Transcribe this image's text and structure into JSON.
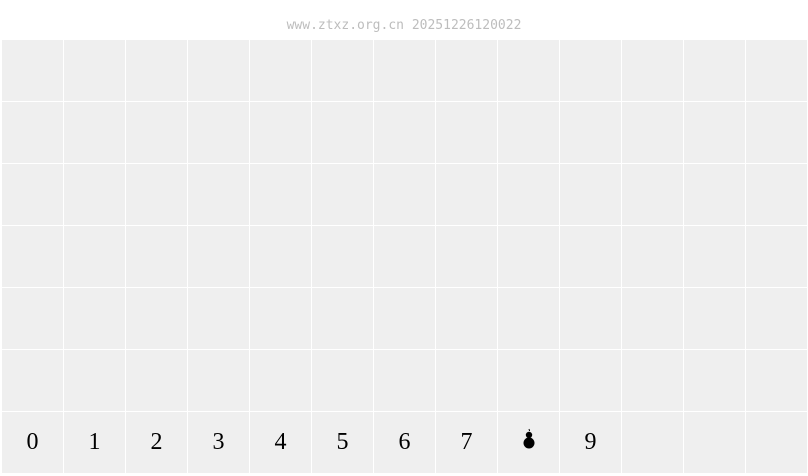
{
  "header": {
    "watermark": "www.ztxz.org.cn 20251226120022"
  },
  "board": {
    "columns": 13,
    "rows": 7,
    "bottom_row": [
      "0",
      "1",
      "2",
      "3",
      "4",
      "5",
      "6",
      "7",
      "",
      "9",
      "",
      "",
      ""
    ],
    "special_cell": {
      "index": 8,
      "icon": "gourd-icon"
    }
  },
  "colors": {
    "cell": "#efefef",
    "gridline": "#ffffff",
    "watermark": "#bdbdbd"
  }
}
